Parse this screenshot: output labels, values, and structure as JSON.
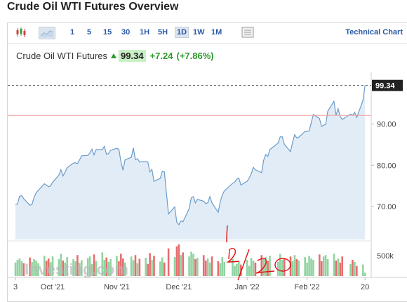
{
  "page_title": "Crude Oil WTI Futures Overview",
  "toolbar": {
    "timeframes": [
      "1",
      "5",
      "15",
      "30",
      "1H",
      "5H",
      "1D",
      "1W",
      "1M"
    ],
    "active": "1D",
    "technical_chart": "Technical Chart",
    "icons": [
      "candlestick-icon",
      "area-chart-icon",
      "table-icon"
    ]
  },
  "quote": {
    "name": "Crude Oil WTI Futures",
    "price": "99.34",
    "change": "+7.24",
    "change_pct": "(+7.86%)"
  },
  "colors": {
    "line": "#6b9ccc",
    "area": "#dde9f4",
    "up": "#90d4a0",
    "down": "#e66d6d",
    "ref": "#f0a0a0",
    "annot": "#e01010"
  },
  "watermark": "Investing.com",
  "annotation": "12/20",
  "chart_data": {
    "type": "area",
    "title": "Crude Oil WTI Futures",
    "last_value_label": "99.34",
    "reference_line": 92.1,
    "ylim": [
      62.0,
      101.5
    ],
    "yticks": [
      70.0,
      80.0,
      90.0
    ],
    "ytick_labels": [
      "70.00",
      "80.00",
      "90.00"
    ],
    "x_start": "2021-09-13",
    "x_end": "2022-03-04",
    "xticks": [
      {
        "date": "2021-09-13",
        "label": "3"
      },
      {
        "date": "2021-10-01",
        "label": "Oct '21"
      },
      {
        "date": "2021-11-01",
        "label": "Nov '21"
      },
      {
        "date": "2021-12-01",
        "label": "Dec '21"
      },
      {
        "date": "2022-01-03",
        "label": "Jan '22"
      },
      {
        "date": "2022-02-01",
        "label": "Feb '22"
      },
      {
        "date": "2022-03-01",
        "label": "20"
      }
    ],
    "volume_label": "500k",
    "series": [
      {
        "values": [
          [
            "2021-09-13",
            70.5
          ],
          [
            "2021-09-14",
            70.6
          ],
          [
            "2021-09-15",
            72.5
          ],
          [
            "2021-09-16",
            72.6
          ],
          [
            "2021-09-17",
            71.9
          ],
          [
            "2021-09-20",
            70.3
          ],
          [
            "2021-09-21",
            70.5
          ],
          [
            "2021-09-22",
            72.2
          ],
          [
            "2021-09-23",
            73.3
          ],
          [
            "2021-09-24",
            73.9
          ],
          [
            "2021-09-27",
            75.5
          ],
          [
            "2021-09-28",
            75.2
          ],
          [
            "2021-09-29",
            74.8
          ],
          [
            "2021-09-30",
            75.0
          ],
          [
            "2021-10-01",
            75.9
          ],
          [
            "2021-10-04",
            77.6
          ],
          [
            "2021-10-05",
            78.9
          ],
          [
            "2021-10-06",
            77.4
          ],
          [
            "2021-10-07",
            78.3
          ],
          [
            "2021-10-08",
            79.4
          ],
          [
            "2021-10-11",
            80.5
          ],
          [
            "2021-10-12",
            80.6
          ],
          [
            "2021-10-13",
            80.4
          ],
          [
            "2021-10-14",
            81.3
          ],
          [
            "2021-10-15",
            82.3
          ],
          [
            "2021-10-18",
            82.4
          ],
          [
            "2021-10-19",
            83.0
          ],
          [
            "2021-10-20",
            83.9
          ],
          [
            "2021-10-21",
            82.5
          ],
          [
            "2021-10-22",
            83.8
          ],
          [
            "2021-10-25",
            83.8
          ],
          [
            "2021-10-26",
            84.6
          ],
          [
            "2021-10-27",
            82.7
          ],
          [
            "2021-10-28",
            82.8
          ],
          [
            "2021-10-29",
            83.6
          ],
          [
            "2021-11-01",
            84.1
          ],
          [
            "2021-11-02",
            83.9
          ],
          [
            "2021-11-03",
            80.9
          ],
          [
            "2021-11-04",
            78.8
          ],
          [
            "2021-11-05",
            81.3
          ],
          [
            "2021-11-08",
            81.9
          ],
          [
            "2021-11-09",
            84.2
          ],
          [
            "2021-11-10",
            81.3
          ],
          [
            "2021-11-11",
            81.6
          ],
          [
            "2021-11-12",
            80.8
          ],
          [
            "2021-11-15",
            80.9
          ],
          [
            "2021-11-16",
            80.8
          ],
          [
            "2021-11-17",
            78.4
          ],
          [
            "2021-11-18",
            79.0
          ],
          [
            "2021-11-19",
            76.1
          ],
          [
            "2021-11-22",
            76.8
          ],
          [
            "2021-11-23",
            78.5
          ],
          [
            "2021-11-24",
            78.4
          ],
          [
            "2021-11-26",
            68.2
          ],
          [
            "2021-11-29",
            69.9
          ],
          [
            "2021-11-30",
            66.2
          ],
          [
            "2021-12-01",
            65.6
          ],
          [
            "2021-12-02",
            66.5
          ],
          [
            "2021-12-03",
            66.3
          ],
          [
            "2021-12-06",
            69.5
          ],
          [
            "2021-12-07",
            72.1
          ],
          [
            "2021-12-08",
            72.4
          ],
          [
            "2021-12-09",
            70.9
          ],
          [
            "2021-12-10",
            71.7
          ],
          [
            "2021-12-13",
            71.3
          ],
          [
            "2021-12-14",
            70.7
          ],
          [
            "2021-12-15",
            70.9
          ],
          [
            "2021-12-16",
            72.4
          ],
          [
            "2021-12-17",
            70.9
          ],
          [
            "2021-12-20",
            68.6
          ],
          [
            "2021-12-21",
            71.1
          ],
          [
            "2021-12-22",
            72.8
          ],
          [
            "2021-12-23",
            73.8
          ],
          [
            "2021-12-27",
            75.6
          ],
          [
            "2021-12-28",
            75.9
          ],
          [
            "2021-12-29",
            76.6
          ],
          [
            "2021-12-30",
            76.9
          ],
          [
            "2021-12-31",
            75.2
          ],
          [
            "2022-01-03",
            76.1
          ],
          [
            "2022-01-04",
            76.9
          ],
          [
            "2022-01-05",
            77.9
          ],
          [
            "2022-01-06",
            79.5
          ],
          [
            "2022-01-07",
            78.9
          ],
          [
            "2022-01-10",
            78.2
          ],
          [
            "2022-01-11",
            81.2
          ],
          [
            "2022-01-12",
            82.6
          ],
          [
            "2022-01-13",
            82.1
          ],
          [
            "2022-01-14",
            83.8
          ],
          [
            "2022-01-18",
            85.4
          ],
          [
            "2022-01-19",
            86.9
          ],
          [
            "2022-01-20",
            86.9
          ],
          [
            "2022-01-21",
            85.1
          ],
          [
            "2022-01-24",
            83.3
          ],
          [
            "2022-01-25",
            85.6
          ],
          [
            "2022-01-26",
            87.4
          ],
          [
            "2022-01-27",
            86.6
          ],
          [
            "2022-01-28",
            86.8
          ],
          [
            "2022-01-31",
            88.2
          ],
          [
            "2022-02-01",
            88.2
          ],
          [
            "2022-02-02",
            88.3
          ],
          [
            "2022-02-03",
            90.3
          ],
          [
            "2022-02-04",
            92.3
          ],
          [
            "2022-02-07",
            91.3
          ],
          [
            "2022-02-08",
            89.4
          ],
          [
            "2022-02-09",
            89.7
          ],
          [
            "2022-02-10",
            89.9
          ],
          [
            "2022-02-11",
            93.1
          ],
          [
            "2022-02-14",
            95.5
          ],
          [
            "2022-02-15",
            92.1
          ],
          [
            "2022-02-16",
            93.7
          ],
          [
            "2022-02-17",
            91.8
          ],
          [
            "2022-02-18",
            91.1
          ],
          [
            "2022-02-22",
            92.4
          ],
          [
            "2022-02-23",
            92.1
          ],
          [
            "2022-02-24",
            92.8
          ],
          [
            "2022-02-25",
            91.6
          ],
          [
            "2022-02-28",
            95.7
          ],
          [
            "2022-03-01",
            99.34
          ]
        ]
      }
    ],
    "volume": [
      0.4,
      0.48,
      0.52,
      0.44,
      0.38,
      0.55,
      0.42,
      0.5,
      0.46,
      0.38,
      0.6,
      0.45,
      0.52,
      0.41,
      0.58,
      0.5,
      0.66,
      0.46,
      0.4,
      0.56,
      0.5,
      0.44,
      0.62,
      0.39,
      0.47,
      0.53,
      0.58,
      0.36,
      0.64,
      0.45,
      0.7,
      0.48,
      0.55,
      0.42,
      0.5,
      0.6,
      0.44,
      0.66,
      0.52,
      0.4,
      0.58,
      0.47,
      0.62,
      0.38,
      0.51,
      0.54,
      0.36,
      0.68,
      0.48,
      0.6,
      0.43,
      0.55,
      0.4,
      0.82,
      0.56,
      0.88,
      0.94,
      0.62,
      0.7,
      0.58,
      0.72,
      0.66,
      0.5,
      0.54,
      0.62,
      0.46,
      0.52,
      0.4,
      0.58,
      0.44,
      0.38,
      0.56,
      0.42,
      0.5,
      0.3,
      0.36,
      0.42,
      0.34,
      0.48,
      0.3,
      0.54,
      0.46,
      0.4,
      0.62,
      0.5,
      0.56,
      0.45,
      0.6,
      0.42,
      0.66,
      0.48,
      0.52,
      0.58,
      0.44,
      0.62,
      0.5,
      0.46,
      0.56,
      0.4,
      0.6,
      0.52,
      0.48,
      0.64,
      0.44,
      0.58,
      0.62,
      0.5,
      0.66,
      0.46,
      0.52,
      0.4,
      0.58,
      0.36,
      0.48,
      0.42,
      0.3,
      0.34,
      0.1
    ]
  }
}
